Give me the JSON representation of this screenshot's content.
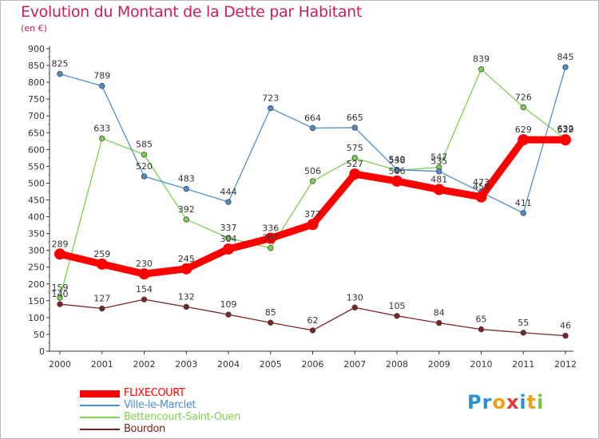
{
  "chart_data": {
    "type": "line",
    "title": "Evolution du Montant de la Dette par Habitant",
    "subtitle": "(en €)",
    "x": [
      "2000",
      "2001",
      "2002",
      "2003",
      "2004",
      "2005",
      "2006",
      "2007",
      "2008",
      "2009",
      "2010",
      "2011",
      "2012"
    ],
    "ylim": [
      0,
      900
    ],
    "yticks": [
      0,
      50,
      100,
      150,
      200,
      250,
      300,
      350,
      400,
      450,
      500,
      550,
      600,
      650,
      700,
      750,
      800,
      850,
      900
    ],
    "grid": false,
    "legend_position": "bottom-left",
    "series": [
      {
        "name": "FLIXECOURT",
        "color": "#ff0000",
        "values": [
          289,
          259,
          230,
          245,
          304,
          336,
          377,
          527,
          506,
          481,
          459,
          629,
          629
        ]
      },
      {
        "name": "Ville-le-Marclet",
        "color": "#4d8fcc",
        "values": [
          825,
          789,
          520,
          483,
          444,
          723,
          664,
          665,
          540,
          535,
          473,
          411,
          845
        ]
      },
      {
        "name": "Bettencourt-Saint-Ouen",
        "color": "#7ed050",
        "values": [
          159,
          633,
          585,
          392,
          337,
          307,
          506,
          575,
          538,
          547,
          839,
          726,
          632
        ]
      },
      {
        "name": "Bourdon",
        "color": "#7a2424",
        "values": [
          140,
          127,
          154,
          132,
          109,
          85,
          62,
          130,
          105,
          84,
          65,
          55,
          46
        ]
      }
    ]
  },
  "logo": {
    "text": "Proxiti",
    "colors": [
      "#2d8fd6",
      "#2d8fd6",
      "#f0a018",
      "#e03a3a",
      "#2d8fd6",
      "#f0a018",
      "#7ec041"
    ]
  }
}
